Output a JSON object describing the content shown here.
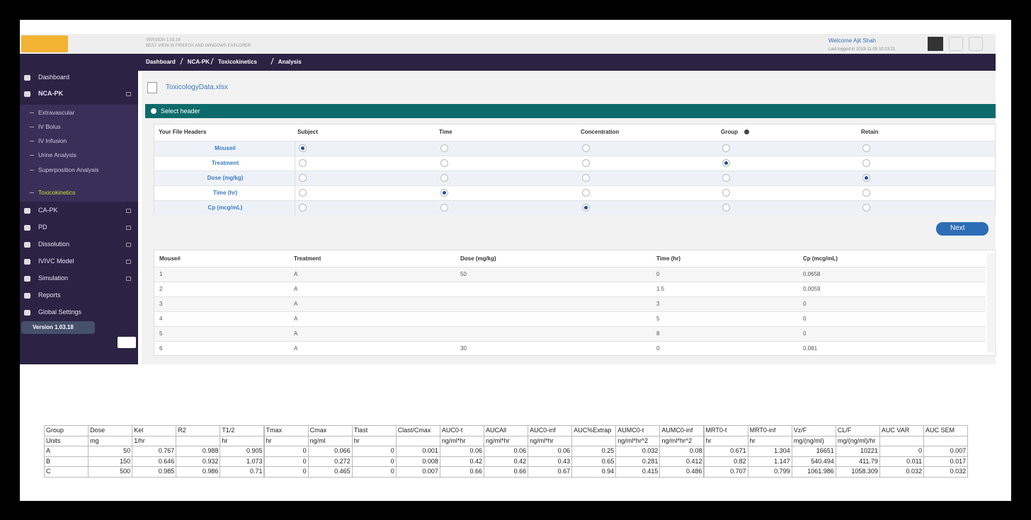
{
  "topbar": {
    "version": "VERSION 1.03.18",
    "browser_note": "BEST VIEW IN FIREFOX AND WINDOWS EXPLORER",
    "welcome": "Welcome Ajit Shah",
    "last_login": "Last logged in 2019-11-05 10:23:21"
  },
  "sidebar": {
    "items": [
      {
        "label": "Dashboard",
        "sub": false,
        "active": false,
        "menu": false
      },
      {
        "label": "NCA-PK",
        "sub": false,
        "active": true,
        "menu": true
      },
      {
        "label": "Extravascular",
        "sub": true,
        "active": false,
        "menu": false
      },
      {
        "label": "IV Bolus",
        "sub": true,
        "active": false,
        "menu": false
      },
      {
        "label": "IV Infusion",
        "sub": true,
        "active": false,
        "menu": false
      },
      {
        "label": "Urine Analysis",
        "sub": true,
        "active": false,
        "menu": false
      },
      {
        "label": "Superposition Analysis",
        "sub": true,
        "active": false,
        "menu": false
      },
      {
        "label": "Toxicokinetics",
        "sub": true,
        "active": true,
        "menu": false
      },
      {
        "label": "CA-PK",
        "sub": false,
        "active": false,
        "menu": true
      },
      {
        "label": "PD",
        "sub": false,
        "active": false,
        "menu": true
      },
      {
        "label": "Dissolution",
        "sub": false,
        "active": false,
        "menu": true
      },
      {
        "label": "IVIVC Model",
        "sub": false,
        "active": false,
        "menu": true
      },
      {
        "label": "Simulation",
        "sub": false,
        "active": false,
        "menu": true
      },
      {
        "label": "Reports",
        "sub": false,
        "active": false,
        "menu": false
      },
      {
        "label": "Global Settings",
        "sub": false,
        "active": false,
        "menu": false
      }
    ],
    "version": "Version 1.03.18"
  },
  "breadcrumb": [
    "Dashboard",
    "NCA-PK",
    "Toxicokinetics",
    "Analysis"
  ],
  "file": "ToxicologyData.xlsx",
  "panel_title": "Select header",
  "header_table": {
    "columns": [
      "Your File Headers",
      "Subject",
      "Time",
      "Concentration",
      "Group",
      "Retain"
    ],
    "rows": [
      {
        "header": "Mouse#",
        "checked": [
          true,
          false,
          false,
          false,
          false
        ]
      },
      {
        "header": "Treatment",
        "checked": [
          false,
          false,
          false,
          true,
          false
        ]
      },
      {
        "header": "Dose (mg/kg)",
        "checked": [
          false,
          false,
          false,
          false,
          true
        ]
      },
      {
        "header": "Time (hr)",
        "checked": [
          false,
          true,
          false,
          false,
          false
        ]
      },
      {
        "header": "Cp (mcg/mL)",
        "checked": [
          false,
          false,
          true,
          false,
          false
        ]
      }
    ]
  },
  "next_button": "Next",
  "data_table": {
    "columns": [
      "Mouse#",
      "Treatment",
      "Dose (mg/kg)",
      "Time (hr)",
      "Cp (mcg/mL)"
    ],
    "rows": [
      [
        "1",
        "A",
        "50",
        "0",
        "0.0658"
      ],
      [
        "2",
        "A",
        null,
        "1.5",
        "0.0059"
      ],
      [
        "3",
        "A",
        null,
        "3",
        "0"
      ],
      [
        "4",
        "A",
        null,
        "5",
        "0"
      ],
      [
        "5",
        "A",
        null,
        "8",
        "0"
      ],
      [
        "6",
        "A",
        "30",
        "0",
        "0.081"
      ]
    ]
  },
  "results_table": {
    "rows": [
      [
        "Group",
        "Dose",
        "Kel",
        "R2",
        "T1/2",
        "Tmax",
        "Cmax",
        "Tlast",
        "Clast/Cmax",
        "AUC0-t",
        "AUCAll",
        "AUC0-inf",
        "AUC%Extrap",
        "AUMC0-t",
        "AUMC0-inf",
        "MRT0-t",
        "MRT0-inf",
        "Vz/F",
        "CL/F",
        "AUC VAR",
        "AUC SEM"
      ],
      [
        "Units",
        "mg",
        "1/hr",
        null,
        "hr",
        "hr",
        "ng/ml",
        "hr",
        null,
        "ng/ml*hr",
        "ng/ml*hr",
        "ng/ml*hr",
        null,
        "ng/ml*hr^2",
        "ng/ml*hr^2",
        "hr",
        "hr",
        "mg/(ng/ml)",
        "mg/(ng/ml)/hr",
        null,
        null
      ],
      [
        "A",
        "50",
        "0.767",
        "0.988",
        "0.905",
        "0",
        "0.066",
        "0",
        "0.001",
        "0.06",
        "0.06",
        "0.06",
        "0.25",
        "0.032",
        "0.08",
        "0.671",
        "1.304",
        "16651",
        "10221",
        "0",
        "0.007"
      ],
      [
        "B",
        "150",
        "0.646",
        "0.932",
        "1.073",
        "0",
        "0.272",
        "0",
        "0.008",
        "0.42",
        "0.42",
        "0.43",
        "0.65",
        "0.281",
        "0.412",
        "0.82",
        "1.147",
        "540.494",
        "411.79",
        "0.011",
        "0.017"
      ],
      [
        "C",
        "500",
        "0.985",
        "0.986",
        "0.71",
        "0",
        "0.465",
        "0",
        "0.007",
        "0.66",
        "0.66",
        "0.67",
        "0.94",
        "0.415",
        "0.486",
        "0.707",
        "0.799",
        "1061.986",
        "1058.309",
        "0.032",
        "0.032"
      ]
    ]
  }
}
